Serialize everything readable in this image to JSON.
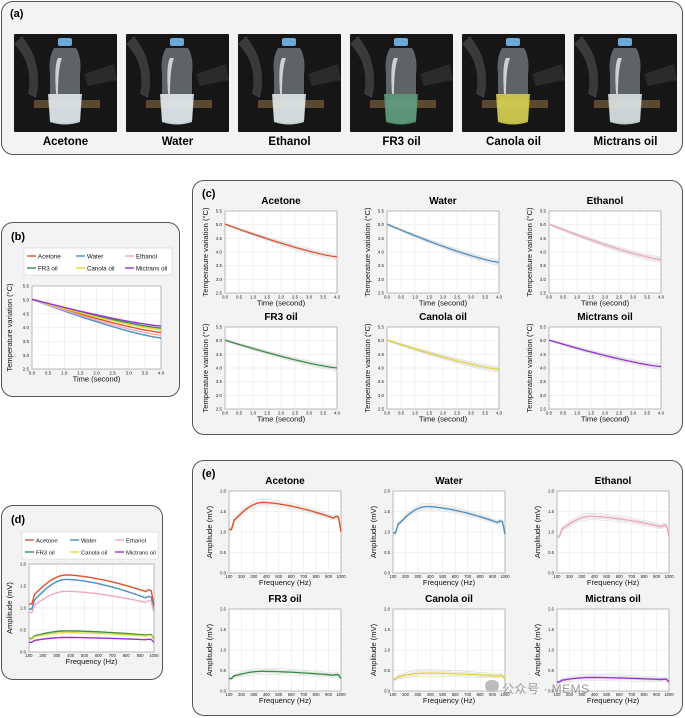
{
  "panel_a": {
    "label": "(a)",
    "samples": [
      {
        "name": "Acetone",
        "liquid_color": "#e6eef2"
      },
      {
        "name": "Water",
        "liquid_color": "#e9f0f3"
      },
      {
        "name": "Ethanol",
        "liquid_color": "#e6edf0"
      },
      {
        "name": "FR3 oil",
        "liquid_color": "#5c9c7e"
      },
      {
        "name": "Canola oil",
        "liquid_color": "#d9d24a"
      },
      {
        "name": "Mictrans oil",
        "liquid_color": "#dfe6e9"
      }
    ]
  },
  "panel_b": {
    "label": "(b)"
  },
  "panel_c": {
    "label": "(c)"
  },
  "panel_d": {
    "label": "(d)"
  },
  "panel_e": {
    "label": "(e)"
  },
  "colors": {
    "Acetone": "#e0522a",
    "Water": "#4a90c0",
    "Ethanol": "#f2a7c3",
    "FR3 oil": "#3a8f4a",
    "Canola oil": "#e2d83a",
    "Mictrans oil": "#9b30d0"
  },
  "watermark": "公众号 · MEMS",
  "chart_data": [
    {
      "id": "b",
      "type": "line",
      "xlabel": "Time (second)",
      "ylabel": "Temperature variation (°C)",
      "xlim": [
        0,
        4.0
      ],
      "ylim": [
        2.5,
        5.5
      ],
      "xticks": [
        "0.0",
        "0.5",
        "1.0",
        "1.5",
        "2.0",
        "2.5",
        "3.0",
        "3.5",
        "4.0"
      ],
      "yticks": [
        "2.5",
        "3.0",
        "3.5",
        "4.0",
        "4.5",
        "5.0",
        "5.5"
      ],
      "grid": true,
      "legend_placement": "top",
      "series": [
        {
          "name": "Acetone",
          "x": [
            0,
            4.0
          ],
          "y": [
            5.02,
            3.82
          ]
        },
        {
          "name": "Water",
          "x": [
            0,
            4.0
          ],
          "y": [
            5.02,
            3.62
          ]
        },
        {
          "name": "Ethanol",
          "x": [
            0,
            4.0
          ],
          "y": [
            5.02,
            3.72
          ]
        },
        {
          "name": "FR3 oil",
          "x": [
            0,
            4.0
          ],
          "y": [
            5.02,
            3.98
          ]
        },
        {
          "name": "Canola oil",
          "x": [
            0,
            4.0
          ],
          "y": [
            5.02,
            3.92
          ]
        },
        {
          "name": "Mictrans oil",
          "x": [
            0,
            4.0
          ],
          "y": [
            5.02,
            4.05
          ]
        }
      ]
    },
    {
      "id": "c",
      "type": "line",
      "xlabel": "Time (second)",
      "ylabel": "Temperature variation (°C)",
      "xlim": [
        0,
        4.0
      ],
      "ylim": [
        2.5,
        5.5
      ],
      "xticks": [
        "0.0",
        "0.5",
        "1.0",
        "1.5",
        "2.0",
        "2.5",
        "3.0",
        "3.5",
        "4.0"
      ],
      "yticks": [
        "2.5",
        "3.0",
        "3.5",
        "4.0",
        "4.5",
        "5.0",
        "5.5"
      ],
      "grid": true,
      "subplots": [
        {
          "title": "Acetone",
          "x": [
            0,
            4.0
          ],
          "y": [
            5.02,
            3.82
          ]
        },
        {
          "title": "Water",
          "x": [
            0,
            4.0
          ],
          "y": [
            5.02,
            3.62
          ]
        },
        {
          "title": "Ethanol",
          "x": [
            0,
            4.0
          ],
          "y": [
            5.02,
            3.72
          ]
        },
        {
          "title": "FR3 oil",
          "x": [
            0,
            4.0
          ],
          "y": [
            5.02,
            4.0
          ]
        },
        {
          "title": "Canola oil",
          "x": [
            0,
            4.0
          ],
          "y": [
            5.02,
            3.95
          ]
        },
        {
          "title": "Mictrans oil",
          "x": [
            0,
            4.0
          ],
          "y": [
            5.02,
            4.05
          ]
        }
      ]
    },
    {
      "id": "d",
      "type": "line",
      "xlabel": "Frequency (Hz)",
      "ylabel": "Amplitude (mV)",
      "xlim": [
        100,
        1000
      ],
      "ylim": [
        0,
        2.0
      ],
      "xticks": [
        "100",
        "200",
        "300",
        "400",
        "500",
        "600",
        "700",
        "800",
        "900",
        "1000"
      ],
      "yticks": [
        "0.0",
        "0.5",
        "1.0",
        "1.5",
        "2.0"
      ],
      "grid": true,
      "legend_placement": "top",
      "series": [
        {
          "name": "Acetone",
          "peak": 1.75,
          "edge": 1.28,
          "end": 1.05
        },
        {
          "name": "Water",
          "peak": 1.65,
          "edge": 1.15,
          "end": 0.95
        },
        {
          "name": "Ethanol",
          "peak": 1.38,
          "edge": 1.05,
          "end": 0.9
        },
        {
          "name": "FR3 oil",
          "peak": 0.48,
          "edge": 0.36,
          "end": 0.3
        },
        {
          "name": "Canola oil",
          "peak": 0.44,
          "edge": 0.34,
          "end": 0.28
        },
        {
          "name": "Mictrans oil",
          "peak": 0.33,
          "edge": 0.26,
          "end": 0.22
        }
      ]
    },
    {
      "id": "e",
      "type": "line",
      "xlabel": "Frequency (Hz)",
      "ylabel": "Amplitude (mV)",
      "xlim": [
        100,
        1000
      ],
      "ylim": [
        0,
        2.0
      ],
      "xticks": [
        "100",
        "200",
        "300",
        "400",
        "500",
        "600",
        "700",
        "800",
        "900",
        "1000"
      ],
      "yticks": [
        "0.0",
        "0.5",
        "1.0",
        "1.5",
        "2.0"
      ],
      "grid": true,
      "subplots": [
        {
          "title": "Acetone",
          "peak": 1.72,
          "edge": 1.25,
          "end": 1.0
        },
        {
          "title": "Water",
          "peak": 1.62,
          "edge": 1.15,
          "end": 0.95
        },
        {
          "title": "Ethanol",
          "peak": 1.38,
          "edge": 1.05,
          "end": 0.9
        },
        {
          "title": "FR3 oil",
          "peak": 0.48,
          "edge": 0.36,
          "end": 0.3
        },
        {
          "title": "Canola oil",
          "peak": 0.44,
          "edge": 0.34,
          "end": 0.28
        },
        {
          "title": "Mictrans oil",
          "peak": 0.33,
          "edge": 0.26,
          "end": 0.22
        }
      ]
    }
  ]
}
